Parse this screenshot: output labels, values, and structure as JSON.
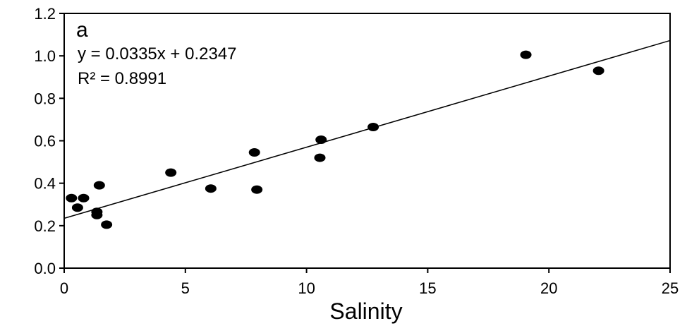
{
  "chart_data": {
    "type": "scatter",
    "title": "",
    "panel_label": "a",
    "xlabel": "Salinity",
    "ylabel": "",
    "xlim": [
      0,
      25
    ],
    "ylim": [
      0.0,
      1.2
    ],
    "x_ticks": [
      "0",
      "5",
      "10",
      "15",
      "20",
      "25"
    ],
    "y_ticks": [
      "0.0",
      "0.2",
      "0.4",
      "0.6",
      "0.8",
      "1.0",
      "1.2"
    ],
    "grid": false,
    "series": [
      {
        "x": [
          0.3,
          0.55,
          0.8,
          1.35,
          1.35,
          1.45,
          1.75,
          4.4,
          6.05,
          7.85,
          7.95,
          10.55,
          10.6,
          12.75,
          19.05,
          22.05
        ],
        "y": [
          0.33,
          0.285,
          0.33,
          0.265,
          0.25,
          0.39,
          0.205,
          0.45,
          0.375,
          0.545,
          0.37,
          0.52,
          0.605,
          0.665,
          1.005,
          0.93
        ]
      }
    ],
    "trendline": {
      "slope": 0.0335,
      "intercept": 0.2347
    },
    "annotations": [
      "y = 0.0335x + 0.2347",
      "R² = 0.8991"
    ],
    "colors": {
      "points": "#000000",
      "line": "#000000",
      "axes": "#000000"
    }
  }
}
